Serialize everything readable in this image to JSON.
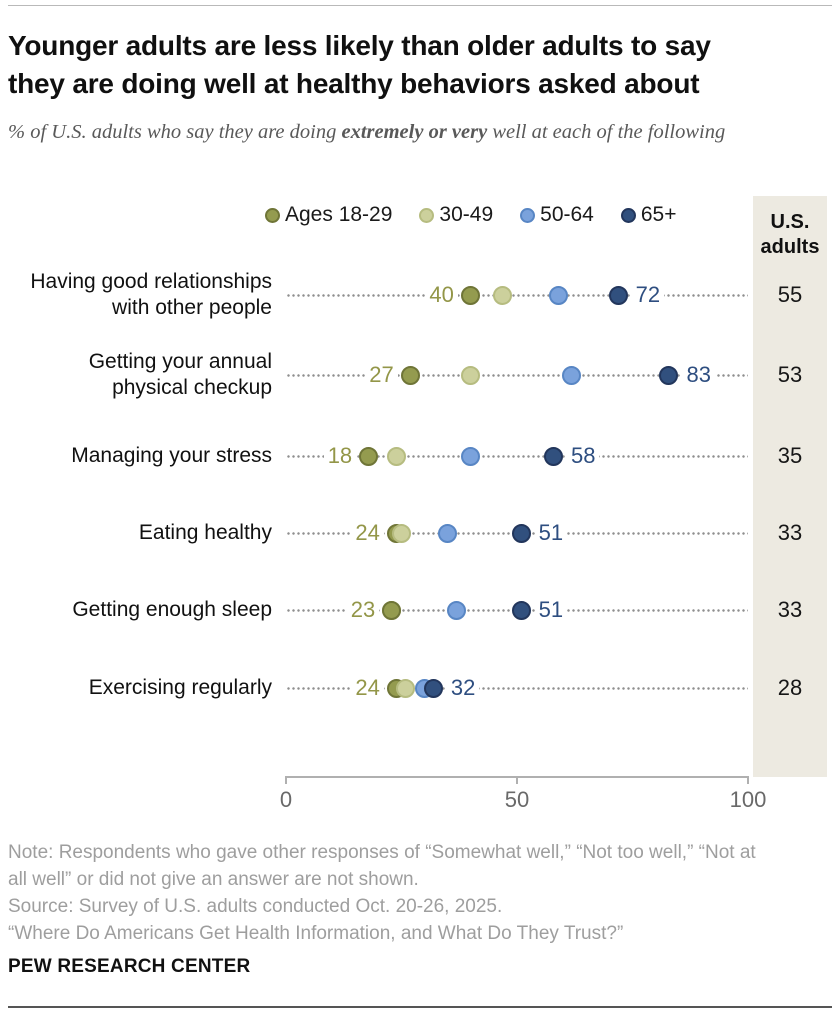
{
  "header": {
    "title_line1": "Younger adults are less likely than older adults to say",
    "title_line2": "they are doing well at healthy behaviors asked about",
    "subtitle_prefix": "% of U.S. adults who say they are doing ",
    "subtitle_bold": "extremely or very",
    "subtitle_suffix": " well at each of the following"
  },
  "legend": {
    "items": [
      {
        "label": "Ages 18-29"
      },
      {
        "label": "30-49"
      },
      {
        "label": "50-64"
      },
      {
        "label": "65+"
      }
    ]
  },
  "us_column": {
    "header_line1": "U.S.",
    "header_line2": "adults",
    "panel_color": "#EDEAE1"
  },
  "chart_data": {
    "type": "scatter",
    "subtype": "dot-plot",
    "title": "Younger adults are less likely than older adults to say they are doing well at healthy behaviors asked about",
    "categories": [
      [
        "Having good relationships",
        "with other people"
      ],
      [
        "Getting your annual",
        "physical checkup"
      ],
      [
        "Managing your stress"
      ],
      [
        "Eating healthy"
      ],
      [
        "Getting enough sleep"
      ],
      [
        "Exercising regularly"
      ]
    ],
    "series": [
      {
        "name": "Ages 18-29",
        "color": "#949B4F",
        "ring": "#6F7537",
        "values": [
          40,
          27,
          18,
          24,
          23,
          24
        ]
      },
      {
        "name": "30-49",
        "color": "#CCD09C",
        "ring": "#B6BC80",
        "values": [
          47,
          40,
          24,
          25,
          23,
          26
        ]
      },
      {
        "name": "50-64",
        "color": "#7AA2DC",
        "ring": "#5886C4",
        "values": [
          59,
          62,
          40,
          35,
          37,
          30
        ]
      },
      {
        "name": "65+",
        "color": "#31507E",
        "ring": "#22365C",
        "values": [
          72,
          83,
          58,
          51,
          51,
          32
        ]
      }
    ],
    "labeled_min": [
      "40",
      "27",
      "18",
      "24",
      "23",
      "24"
    ],
    "labeled_max": [
      "72",
      "83",
      "58",
      "51",
      "51",
      "32"
    ],
    "min_label_color": "#939648",
    "max_label_color": "#2E4E80",
    "us_adults": [
      "55",
      "53",
      "35",
      "33",
      "33",
      "28"
    ],
    "xlim": [
      0,
      100
    ],
    "x_ticks": [
      "0",
      "50",
      "100"
    ],
    "x_tick_values": [
      0,
      50,
      100
    ],
    "grid": "dotted-leader-lines",
    "legend_position": "top",
    "row_y": [
      105,
      185,
      266,
      343,
      420,
      498
    ],
    "z_top": {
      "row": 4,
      "series": 0
    }
  },
  "notes": {
    "lines": [
      "Note: Respondents who gave other responses of “Somewhat well,” “Not too well,” “Not at",
      "all well” or did not give an answer are not shown.",
      "Source: Survey of U.S. adults conducted Oct. 20-26, 2025.",
      "“Where Do Americans Get Health Information, and What Do They Trust?”"
    ],
    "brand": "PEW RESEARCH CENTER"
  }
}
